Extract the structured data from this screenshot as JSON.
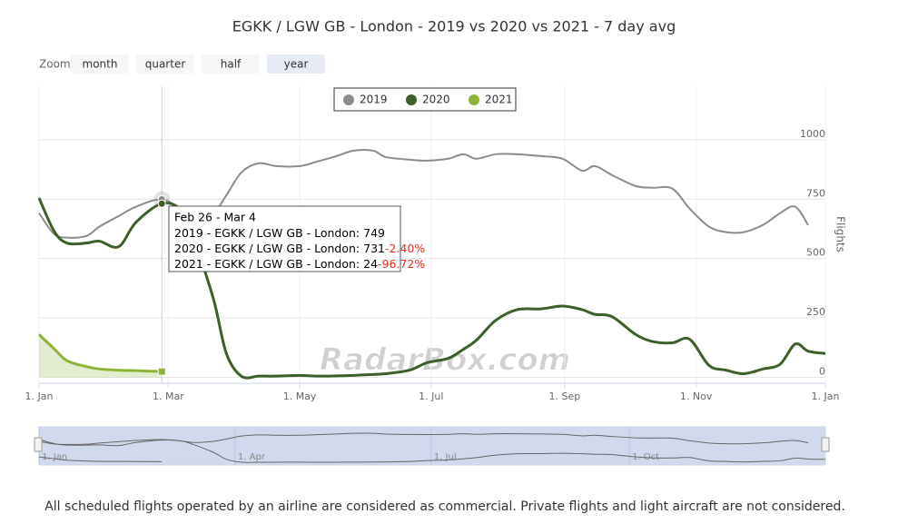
{
  "chart_data": {
    "type": "line",
    "title": "EGKK / LGW GB - London - 2019 vs 2020 vs 2021 - 7 day avg",
    "zoom": {
      "label": "Zoom",
      "buttons": [
        "month",
        "quarter",
        "half",
        "year"
      ],
      "selected": "year"
    },
    "y_axis_label": "Flights",
    "watermark": "RadarBox.com",
    "footer": "All scheduled flights operated by an airline are considered as commercial. Private flights and light aircraft are not considered.",
    "grid": true,
    "xlim": [
      0,
      365
    ],
    "xticks": [
      {
        "value": 0,
        "label": "1. Jan"
      },
      {
        "value": 60,
        "label": "1. Mar"
      },
      {
        "value": 121,
        "label": "1. May"
      },
      {
        "value": 182,
        "label": "1. Jul"
      },
      {
        "value": 244,
        "label": "1. Sep"
      },
      {
        "value": 305,
        "label": "1. Nov"
      },
      {
        "value": 365,
        "label": "1. Jan"
      }
    ],
    "ylim": [
      -25,
      1225
    ],
    "yticks": [
      0,
      250,
      500,
      750,
      1000
    ],
    "x": [
      0,
      7,
      13,
      22,
      28,
      37,
      45,
      57,
      66,
      72,
      81,
      87,
      94,
      102,
      110,
      121,
      129,
      138,
      146,
      155,
      161,
      172,
      180,
      190,
      197,
      203,
      212,
      222,
      233,
      243,
      252,
      258,
      266,
      277,
      285,
      294,
      302,
      311,
      319,
      327,
      336,
      344,
      351,
      357,
      365
    ],
    "series": [
      {
        "name": "2019",
        "color": "#8c8c8c",
        "values": [
          691,
          603,
          588,
          595,
          634,
          679,
          718,
          749,
          702,
          653,
          691,
          767,
          863,
          901,
          889,
          889,
          908,
          931,
          954,
          954,
          927,
          916,
          912,
          920,
          939,
          920,
          939,
          939,
          931,
          920,
          870,
          889,
          851,
          805,
          798,
          794,
          710,
          634,
          611,
          611,
          641,
          691,
          718,
          641,
          null
        ]
      },
      {
        "name": "2020",
        "color": "#3d5f2a",
        "values": [
          755,
          615,
          565,
          565,
          573,
          550,
          653,
          731,
          702,
          576,
          328,
          99,
          4,
          5,
          5,
          8,
          5,
          6,
          8,
          12,
          15,
          30,
          61,
          80,
          118,
          156,
          240,
          285,
          288,
          300,
          285,
          265,
          255,
          180,
          150,
          145,
          160,
          50,
          30,
          15,
          35,
          55,
          140,
          110,
          100
        ]
      },
      {
        "name": "2021",
        "color": "#8db33a",
        "values": [
          180,
          120,
          70,
          45,
          35,
          30,
          28,
          24,
          null,
          null,
          null,
          null,
          null,
          null,
          null,
          null,
          null,
          null,
          null,
          null,
          null,
          null,
          null,
          null,
          null,
          null,
          null,
          null,
          null,
          null,
          null,
          null,
          null,
          null,
          null,
          null,
          null,
          null,
          null,
          null,
          null,
          null,
          null,
          null,
          null
        ]
      }
    ],
    "tooltip": {
      "header": "Feb 26 - Mar 4",
      "rows": [
        {
          "label": "2019 - EGKK / LGW GB - London: ",
          "value": 749
        },
        {
          "label": "2020 - EGKK / LGW GB - London: ",
          "value": 731,
          "change": {
            "value": -2.4,
            "label": "-2.40%"
          }
        },
        {
          "label": "2021 - EGKK / LGW GB - London: ",
          "value": 24,
          "change": {
            "value": -96.72,
            "label": "-96.72%"
          }
        }
      ]
    },
    "navigator": {
      "xticks": [
        {
          "value": 0,
          "label": "1. Jan"
        },
        {
          "value": 91,
          "label": "1. Apr"
        },
        {
          "value": 182,
          "label": "1. Jul"
        },
        {
          "value": 274,
          "label": "1. Oct"
        }
      ]
    }
  }
}
